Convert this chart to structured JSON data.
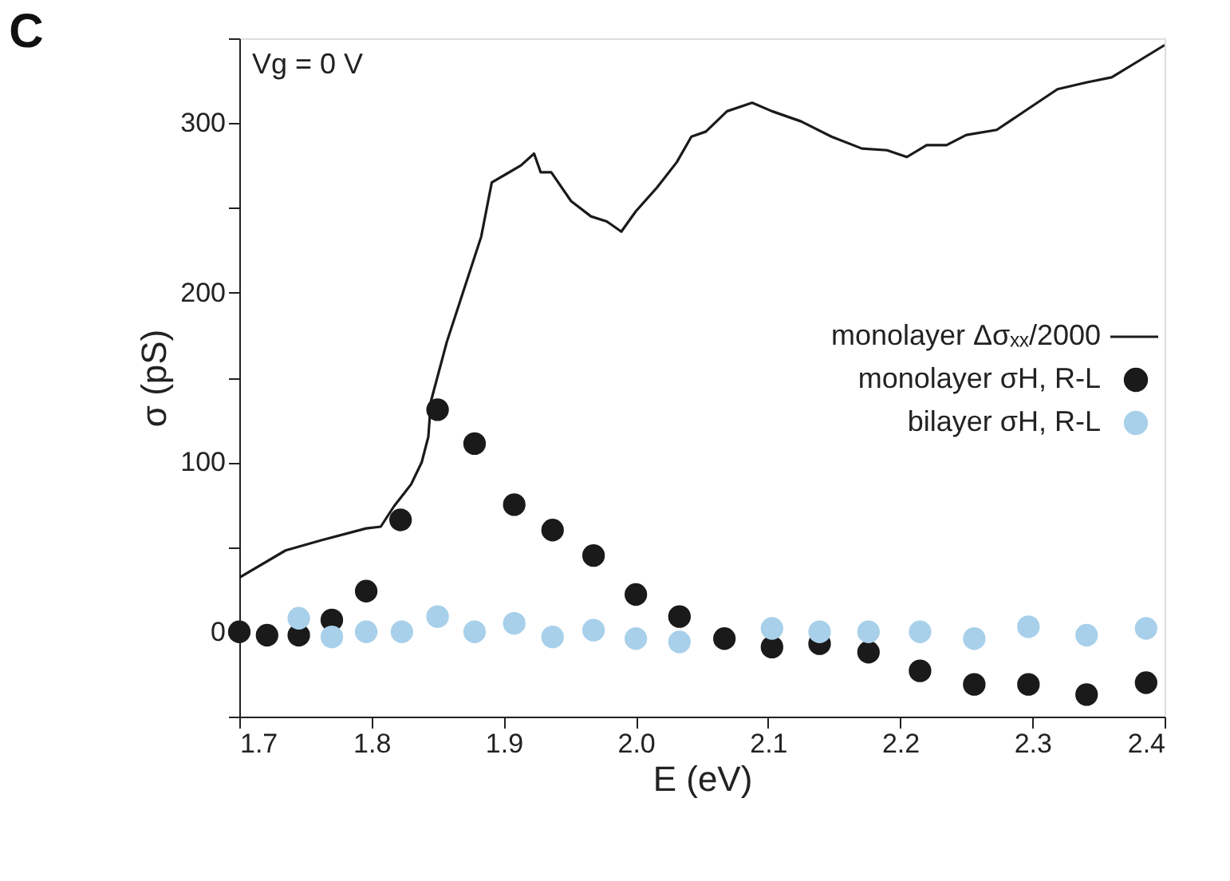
{
  "chart_data": {
    "type": "scatter",
    "title": "C",
    "xlabel": "E (eV)",
    "ylabel": "σ (pS)",
    "annotations": [
      "Vg = 0 V"
    ],
    "xlim": [
      1.7,
      2.4
    ],
    "ylim": [
      -50,
      350
    ],
    "xticks": [
      1.7,
      1.8,
      1.9,
      {
        "value": 2.0,
        "label": "2.0"
      },
      2.1,
      2.2,
      2.3,
      2.4
    ],
    "yticks": [
      {
        "value": -50,
        "label": null
      },
      0,
      {
        "value": 50,
        "label": null
      },
      100,
      {
        "value": 150,
        "label": null
      },
      200,
      {
        "value": 250,
        "label": null
      },
      300,
      {
        "value": 350,
        "label": null
      }
    ],
    "grid": false,
    "legend": "bottom right",
    "series": [
      {
        "name": "monolayer Δσₓₓ/2000",
        "type": "line",
        "color": "#1a1a1a",
        "x": [
          1.7,
          1.735,
          1.762,
          1.796,
          1.807,
          1.817,
          1.83,
          1.838,
          1.843,
          1.845,
          1.857,
          1.87,
          1.883,
          1.891,
          1.902,
          1.913,
          1.923,
          1.928,
          1.936,
          1.951,
          1.966,
          1.978,
          1.989,
          2.0,
          2.016,
          2.031,
          2.042,
          2.053,
          2.069,
          2.088,
          2.103,
          2.125,
          2.148,
          2.171,
          2.19,
          2.205,
          2.22,
          2.235,
          2.25,
          2.273,
          2.296,
          2.319,
          2.341,
          2.36,
          2.379,
          2.4
        ],
        "values": [
          32,
          48,
          54,
          61,
          62,
          74,
          87,
          100,
          115,
          136,
          171,
          202,
          233,
          265,
          270,
          275,
          282,
          271,
          271,
          254,
          245,
          242,
          236,
          248,
          262,
          277,
          292,
          295,
          307,
          312,
          307,
          301,
          292,
          285,
          284,
          280,
          287,
          287,
          293,
          296,
          308,
          320,
          324,
          327,
          336,
          346
        ]
      },
      {
        "name": "monolayer σH, R-L",
        "color": "#1a1a1a",
        "x": [
          1.7,
          1.721,
          1.745,
          1.77,
          1.796,
          1.822,
          1.85,
          1.878,
          1.908,
          1.937,
          1.968,
          2.0,
          2.033,
          2.067,
          2.103,
          2.139,
          2.176,
          2.215,
          2.256,
          2.297,
          2.341,
          2.386
        ],
        "values": [
          0,
          -2,
          -2,
          7,
          24,
          66,
          131,
          111,
          75,
          60,
          45,
          22,
          9,
          -4,
          -9,
          -7,
          -12,
          -23,
          -31,
          -31,
          -37,
          -30
        ]
      },
      {
        "name": "bilayer σH, R-L",
        "color": "#a8d0ea",
        "x": [
          1.745,
          1.77,
          1.796,
          1.823,
          1.85,
          1.878,
          1.908,
          1.937,
          1.968,
          2.0,
          2.033,
          2.103,
          2.139,
          2.176,
          2.215,
          2.256,
          2.297,
          2.341,
          2.386
        ],
        "values": [
          8,
          -3,
          0,
          0,
          9,
          0,
          5,
          -3,
          1,
          -4,
          -6,
          2,
          0,
          0,
          0,
          -4,
          3,
          -2,
          2
        ]
      }
    ]
  }
}
